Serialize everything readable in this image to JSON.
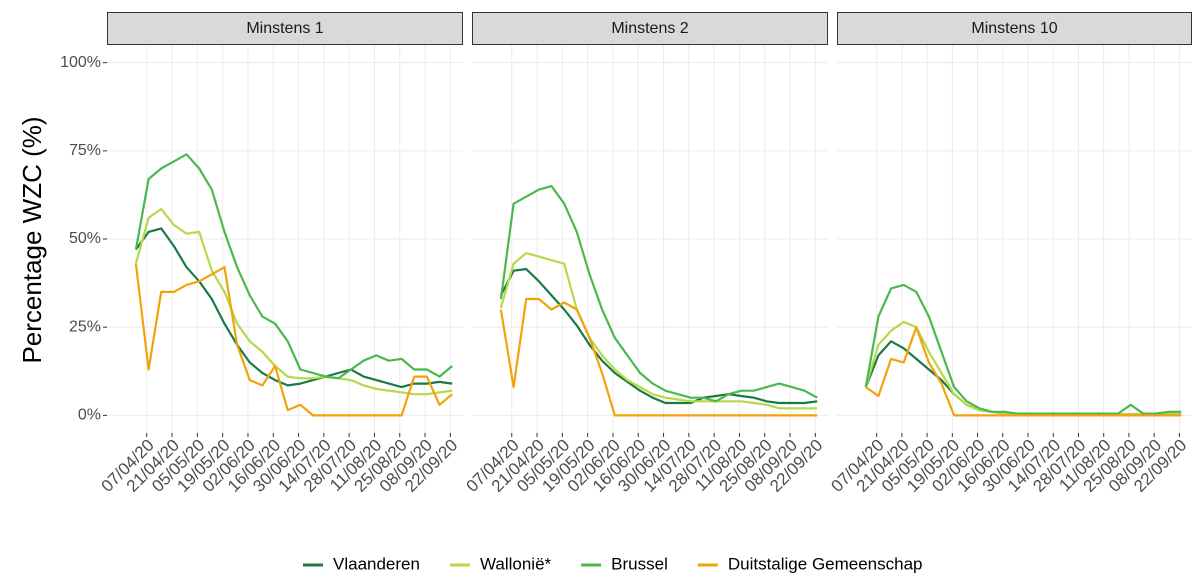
{
  "chart_data": {
    "type": "line",
    "y_label": "Percentage WZC (%)",
    "x": [
      "01/04/20",
      "08/04/20",
      "15/04/20",
      "22/04/20",
      "29/04/20",
      "06/05/20",
      "13/05/20",
      "20/05/20",
      "27/05/20",
      "03/06/20",
      "10/06/20",
      "17/06/20",
      "24/06/20",
      "01/07/20",
      "08/07/20",
      "15/07/20",
      "22/07/20",
      "29/07/20",
      "05/08/20",
      "12/08/20",
      "19/08/20",
      "26/08/20",
      "02/09/20",
      "09/09/20",
      "16/09/20",
      "23/09/20"
    ],
    "xlim": [
      "16/03/20",
      "29/09/20"
    ],
    "xticks": [
      "07/04/20",
      "21/04/20",
      "05/05/20",
      "19/05/20",
      "02/06/20",
      "16/06/20",
      "30/06/20",
      "14/07/20",
      "28/07/20",
      "11/08/20",
      "25/08/20",
      "08/09/20",
      "22/09/20"
    ],
    "ylim": [
      -5,
      105
    ],
    "yticks": [
      {
        "value": 0,
        "label": "0%"
      },
      {
        "value": 25,
        "label": "25%"
      },
      {
        "value": 50,
        "label": "50%"
      },
      {
        "value": 75,
        "label": "75%"
      },
      {
        "value": 100,
        "label": "100%"
      }
    ],
    "grid": true,
    "legend_position": "bottom",
    "series": [
      {
        "name": "Vlaanderen",
        "color": "#1a7a45"
      },
      {
        "name": "Wallonië*",
        "color": "#b5d94a"
      },
      {
        "name": "Brussel",
        "color": "#4cb84c"
      },
      {
        "name": "Duitstalige Gemeenschap",
        "color": "#f0a30a"
      }
    ],
    "facets": [
      {
        "title": "Minstens 1",
        "series": [
          {
            "values": [
              47,
              52,
              53,
              48,
              42,
              38,
              33,
              26,
              20,
              15,
              12,
              10,
              8.5,
              9,
              10,
              11,
              12,
              13,
              11,
              10,
              9,
              8,
              9,
              9,
              9.5,
              9
            ]
          },
          {
            "values": [
              43,
              56,
              58.5,
              54,
              51.5,
              52,
              41,
              35,
              26,
              21,
              18,
              14,
              11,
              10.5,
              10.5,
              11,
              10.5,
              10,
              8.5,
              7.5,
              7,
              6.5,
              6,
              6,
              6.5,
              7
            ]
          },
          {
            "values": [
              47,
              67,
              70,
              72,
              74,
              70,
              64,
              52,
              42,
              34,
              28,
              26,
              21,
              13,
              12,
              11,
              10.5,
              13,
              15.5,
              17,
              15.5,
              16,
              13,
              13,
              11,
              14
            ]
          },
          {
            "values": [
              43,
              13,
              35,
              35,
              37,
              38,
              40,
              42,
              20,
              10,
              8.5,
              14,
              1.5,
              3,
              0,
              0,
              0,
              0,
              0,
              0,
              0,
              0,
              11,
              11,
              3,
              6
            ]
          }
        ]
      },
      {
        "title": "Minstens 2",
        "series": [
          {
            "values": [
              34,
              41,
              41.5,
              38,
              34,
              30,
              25.5,
              20,
              15.5,
              12,
              9.5,
              7,
              5,
              3.5,
              3.5,
              3.5,
              5,
              5.5,
              6,
              5.5,
              5,
              4,
              3.5,
              3.5,
              3.5,
              4
            ]
          },
          {
            "values": [
              30.5,
              43,
              46,
              45,
              44,
              43,
              30,
              22,
              17,
              13,
              10,
              8,
              6,
              5,
              4.5,
              4,
              4,
              4,
              4,
              4,
              3.5,
              3,
              2,
              2,
              2,
              2
            ]
          },
          {
            "values": [
              33,
              60,
              62,
              64,
              65,
              60,
              52,
              40,
              30,
              22,
              17,
              12,
              9,
              7,
              6,
              5,
              5,
              4,
              6,
              7,
              7,
              8,
              9,
              8,
              7,
              5
            ]
          },
          {
            "values": [
              30,
              8,
              33,
              33,
              30,
              32,
              30,
              22,
              12,
              0,
              0,
              0,
              0,
              0,
              0,
              0,
              0,
              0,
              0,
              0,
              0,
              0,
              0,
              0,
              0,
              0
            ]
          }
        ]
      },
      {
        "title": "Minstens 10",
        "series": [
          {
            "values": [
              8,
              17,
              21,
              19,
              16,
              13,
              10,
              6,
              3,
              1.5,
              1,
              0.5,
              0.4,
              0.3,
              0.3,
              0.3,
              0.3,
              0.3,
              0.3,
              0.3,
              0.3,
              0.3,
              0.3,
              0.3,
              0.3,
              0.3
            ]
          },
          {
            "values": [
              8,
              20,
              24,
              26.5,
              25,
              18,
              12,
              6,
              3,
              1.5,
              1,
              0.5,
              0.3,
              0.3,
              0.3,
              0.3,
              0.3,
              0.3,
              0.3,
              0.3,
              0.3,
              0.3,
              0.3,
              0.3,
              0.3,
              0.3
            ]
          },
          {
            "values": [
              8,
              28,
              36,
              37,
              35,
              28,
              18,
              8,
              4,
              2,
              1,
              1,
              0.5,
              0.5,
              0.5,
              0.5,
              0.5,
              0.5,
              0.5,
              0.5,
              0.5,
              3,
              0.5,
              0.5,
              1,
              1
            ]
          },
          {
            "values": [
              8,
              5.5,
              16,
              15,
              25,
              15,
              9,
              0,
              0,
              0,
              0,
              0,
              0,
              0,
              0,
              0,
              0,
              0,
              0,
              0,
              0,
              0,
              0,
              0,
              0,
              0
            ]
          }
        ]
      }
    ]
  }
}
